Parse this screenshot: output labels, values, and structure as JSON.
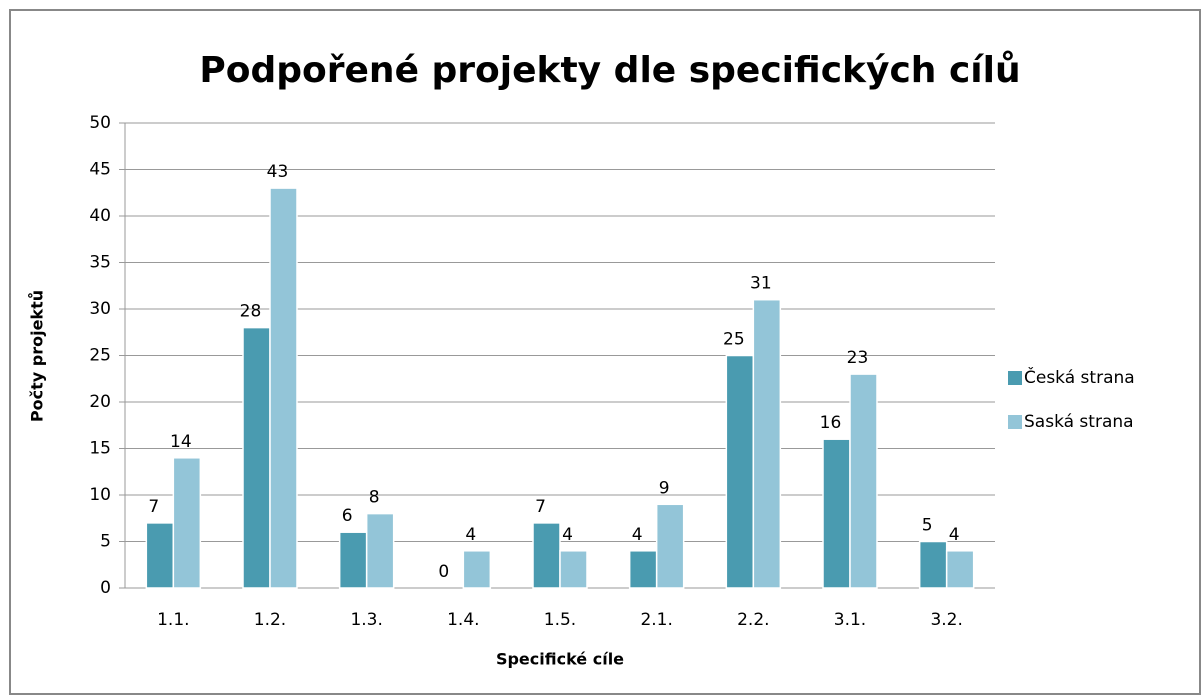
{
  "chart_data": {
    "type": "bar",
    "title": "Podpořené projekty dle specifických cílů",
    "x_label": "Specifické cíle",
    "y_label": "Počty projektů",
    "categories": [
      "1.1.",
      "1.2.",
      "1.3.",
      "1.4.",
      "1.5.",
      "2.1.",
      "2.2.",
      "3.1.",
      "3.2."
    ],
    "series": [
      {
        "name": "Česká strana",
        "color": "#4a9bb0",
        "values": [
          7,
          28,
          6,
          0,
          7,
          4,
          25,
          16,
          5
        ]
      },
      {
        "name": "Saská strana",
        "color": "#93c5d8",
        "values": [
          14,
          43,
          8,
          4,
          4,
          9,
          31,
          23,
          4
        ]
      }
    ],
    "ylim": [
      0,
      50
    ],
    "yticks": [
      0,
      5,
      10,
      15,
      20,
      25,
      30,
      35,
      40,
      45,
      50
    ],
    "grid": true,
    "legend": "right"
  }
}
